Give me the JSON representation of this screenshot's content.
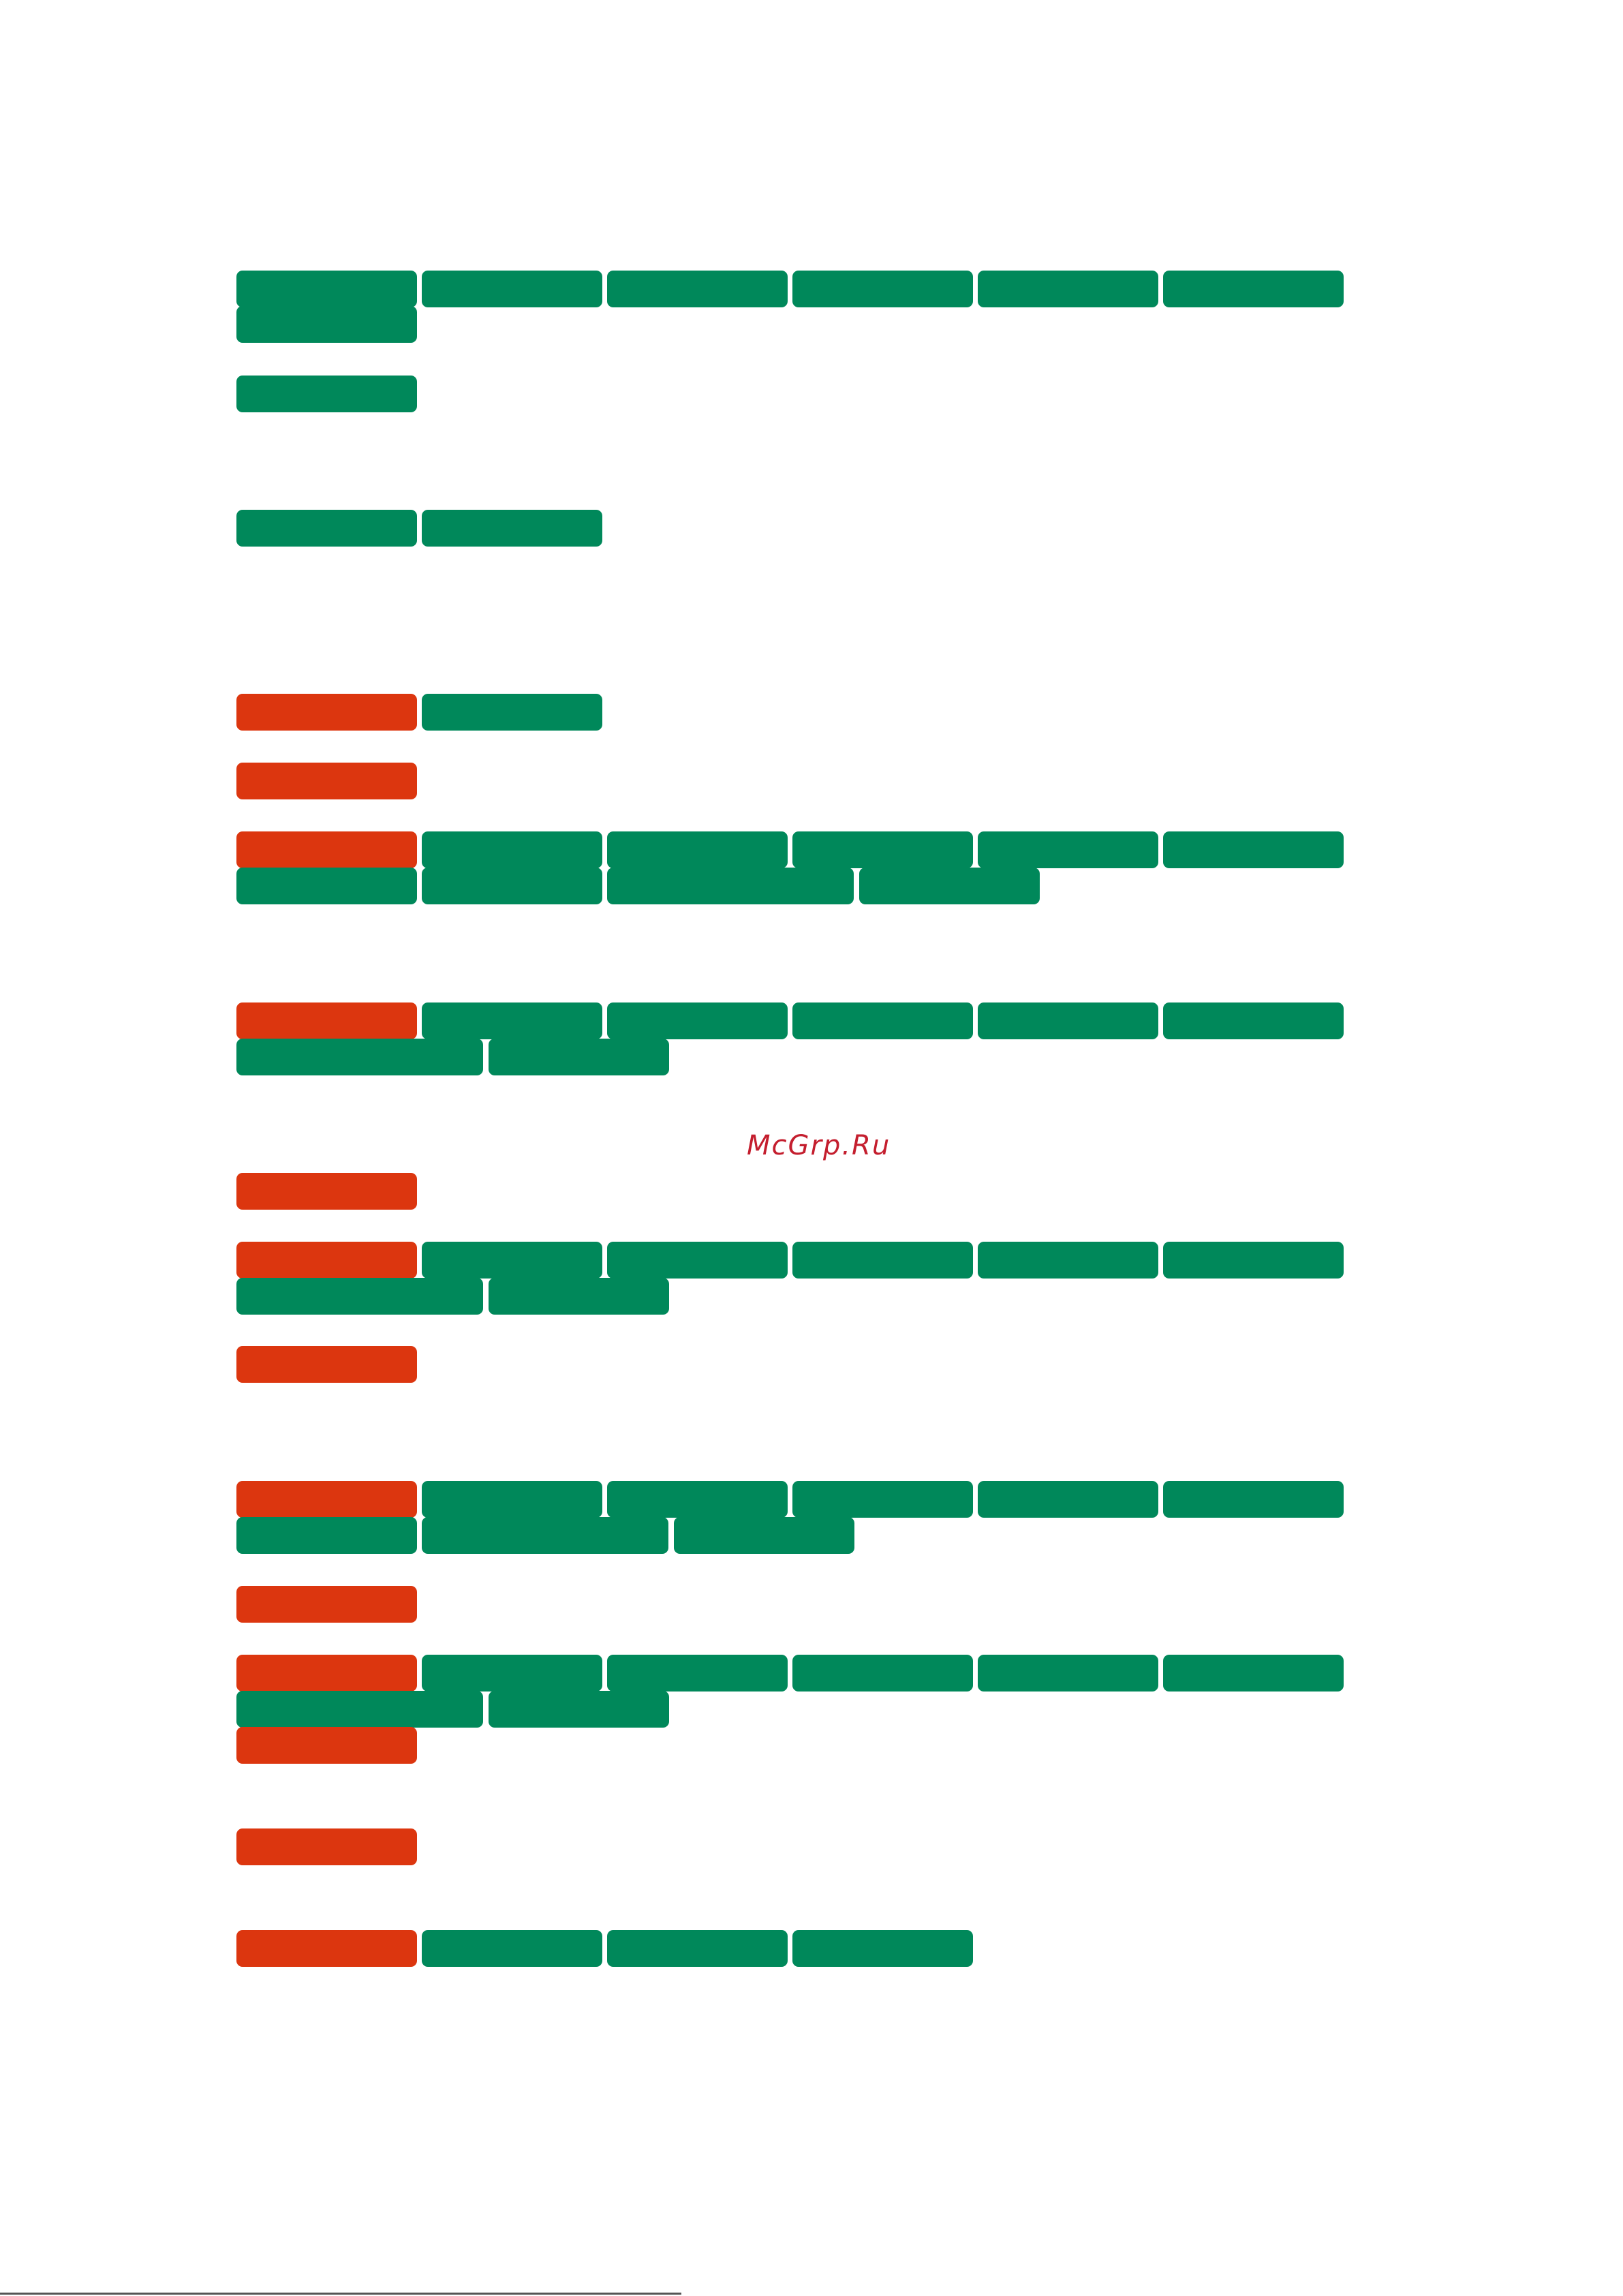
{
  "document": {
    "watermark": "McGrp.Ru"
  },
  "colors": {
    "green": "#00885a",
    "red": "#dc360f",
    "watermark": "#c41e2e",
    "background": "#ffffff"
  },
  "line_count": 24
}
